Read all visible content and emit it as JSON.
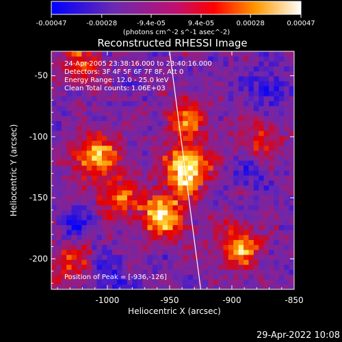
{
  "chart_data": {
    "type": "heatmap",
    "title": "Reconstructed RHESSI Image",
    "xlabel": "Heliocentric X (arcsec)",
    "ylabel": "Heliocentric Y (arcsec)",
    "xlim": [
      -1045,
      -850
    ],
    "ylim": [
      -225,
      -30
    ],
    "xticks": [
      -1000,
      -950,
      -900,
      -850
    ],
    "yticks": [
      -50,
      -100,
      -150,
      -200
    ],
    "grid": false,
    "colorbar": {
      "position": "top",
      "ticks": [
        "-0.00047",
        "-0.00028",
        "-9.4e-05",
        "9.4e-05",
        "0.00028",
        "0.00047"
      ],
      "tick_values": [
        -0.00047,
        -0.00028,
        -9.4e-05,
        9.4e-05,
        0.00028,
        0.00047
      ],
      "range": [
        -0.00047,
        0.00047
      ],
      "unit_label": "(photons cm^-2 s^-1 asec^-2)",
      "colors": [
        "#0000ff",
        "#7030a0",
        "#ff0000",
        "#ff9900",
        "#ffff80",
        "#ffffff"
      ]
    },
    "annotations": [
      "24-Apr-2005 23:38:16.000 to 23:40:16.000",
      "Detectors: 3F 4F 5F 6F 7F 8F, Att 0",
      "Energy Range: 12.0 - 25.0 keV",
      "Clean     Total counts: 1.06E+03"
    ],
    "peak_label": "Position of Peak = [-936,-126]",
    "peak": [
      -936,
      -126
    ],
    "limb_line": [
      [
        -950,
        -30
      ],
      [
        -925,
        -225
      ]
    ],
    "bright_sources": [
      {
        "x": -1010,
        "y": -115,
        "strength": 0.75
      },
      {
        "x": -990,
        "y": -150,
        "strength": 0.55
      },
      {
        "x": -955,
        "y": -165,
        "strength": 0.85
      },
      {
        "x": -936,
        "y": -126,
        "strength": 1.0
      },
      {
        "x": -895,
        "y": -190,
        "strength": 0.7
      },
      {
        "x": -878,
        "y": -105,
        "strength": 0.45
      },
      {
        "x": -935,
        "y": -85,
        "strength": 0.55
      },
      {
        "x": -1030,
        "y": -205,
        "strength": 0.45
      },
      {
        "x": -1020,
        "y": -40,
        "strength": 0.5
      }
    ],
    "dark_sources": [
      {
        "x": -1025,
        "y": -170
      },
      {
        "x": -870,
        "y": -60
      },
      {
        "x": -885,
        "y": -125
      },
      {
        "x": -1000,
        "y": -215
      }
    ]
  },
  "footer": {
    "date": "29-Apr-2022 10:08"
  }
}
